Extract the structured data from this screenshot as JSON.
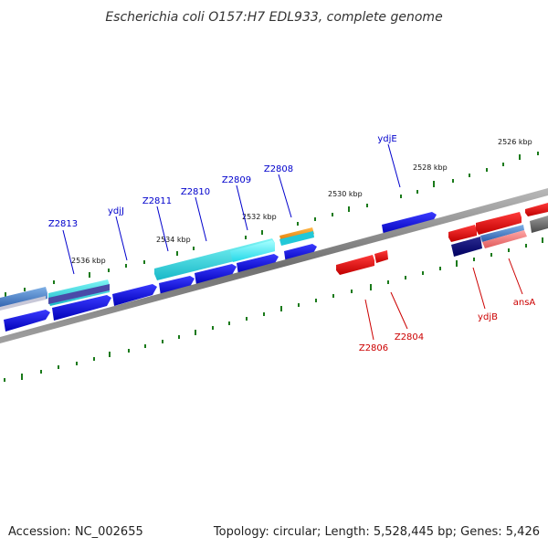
{
  "title": "Escherichia coli O157:H7 EDL933, complete genome",
  "footer": {
    "accession": "Accession: NC_002655",
    "summary": "Topology: circular; Length: 5,528,445 bp; Genes: 5,426"
  },
  "colors": {
    "forward_label": "#0000cc",
    "reverse_label": "#cc0000",
    "backbone": "#7a7a7a",
    "tick": "#1a7a1a"
  },
  "scale_labels": [
    "2526 kbp",
    "2528 kbp",
    "2530 kbp",
    "2532 kbp",
    "2534 kbp",
    "2536 kbp"
  ],
  "forward_gene_labels": [
    "ydjE",
    "Z2808",
    "Z2809",
    "Z2810",
    "Z2811",
    "ydjJ",
    "Z2813"
  ],
  "reverse_gene_labels": [
    "Z2806",
    "Z2804",
    "ydjB",
    "ansA"
  ]
}
